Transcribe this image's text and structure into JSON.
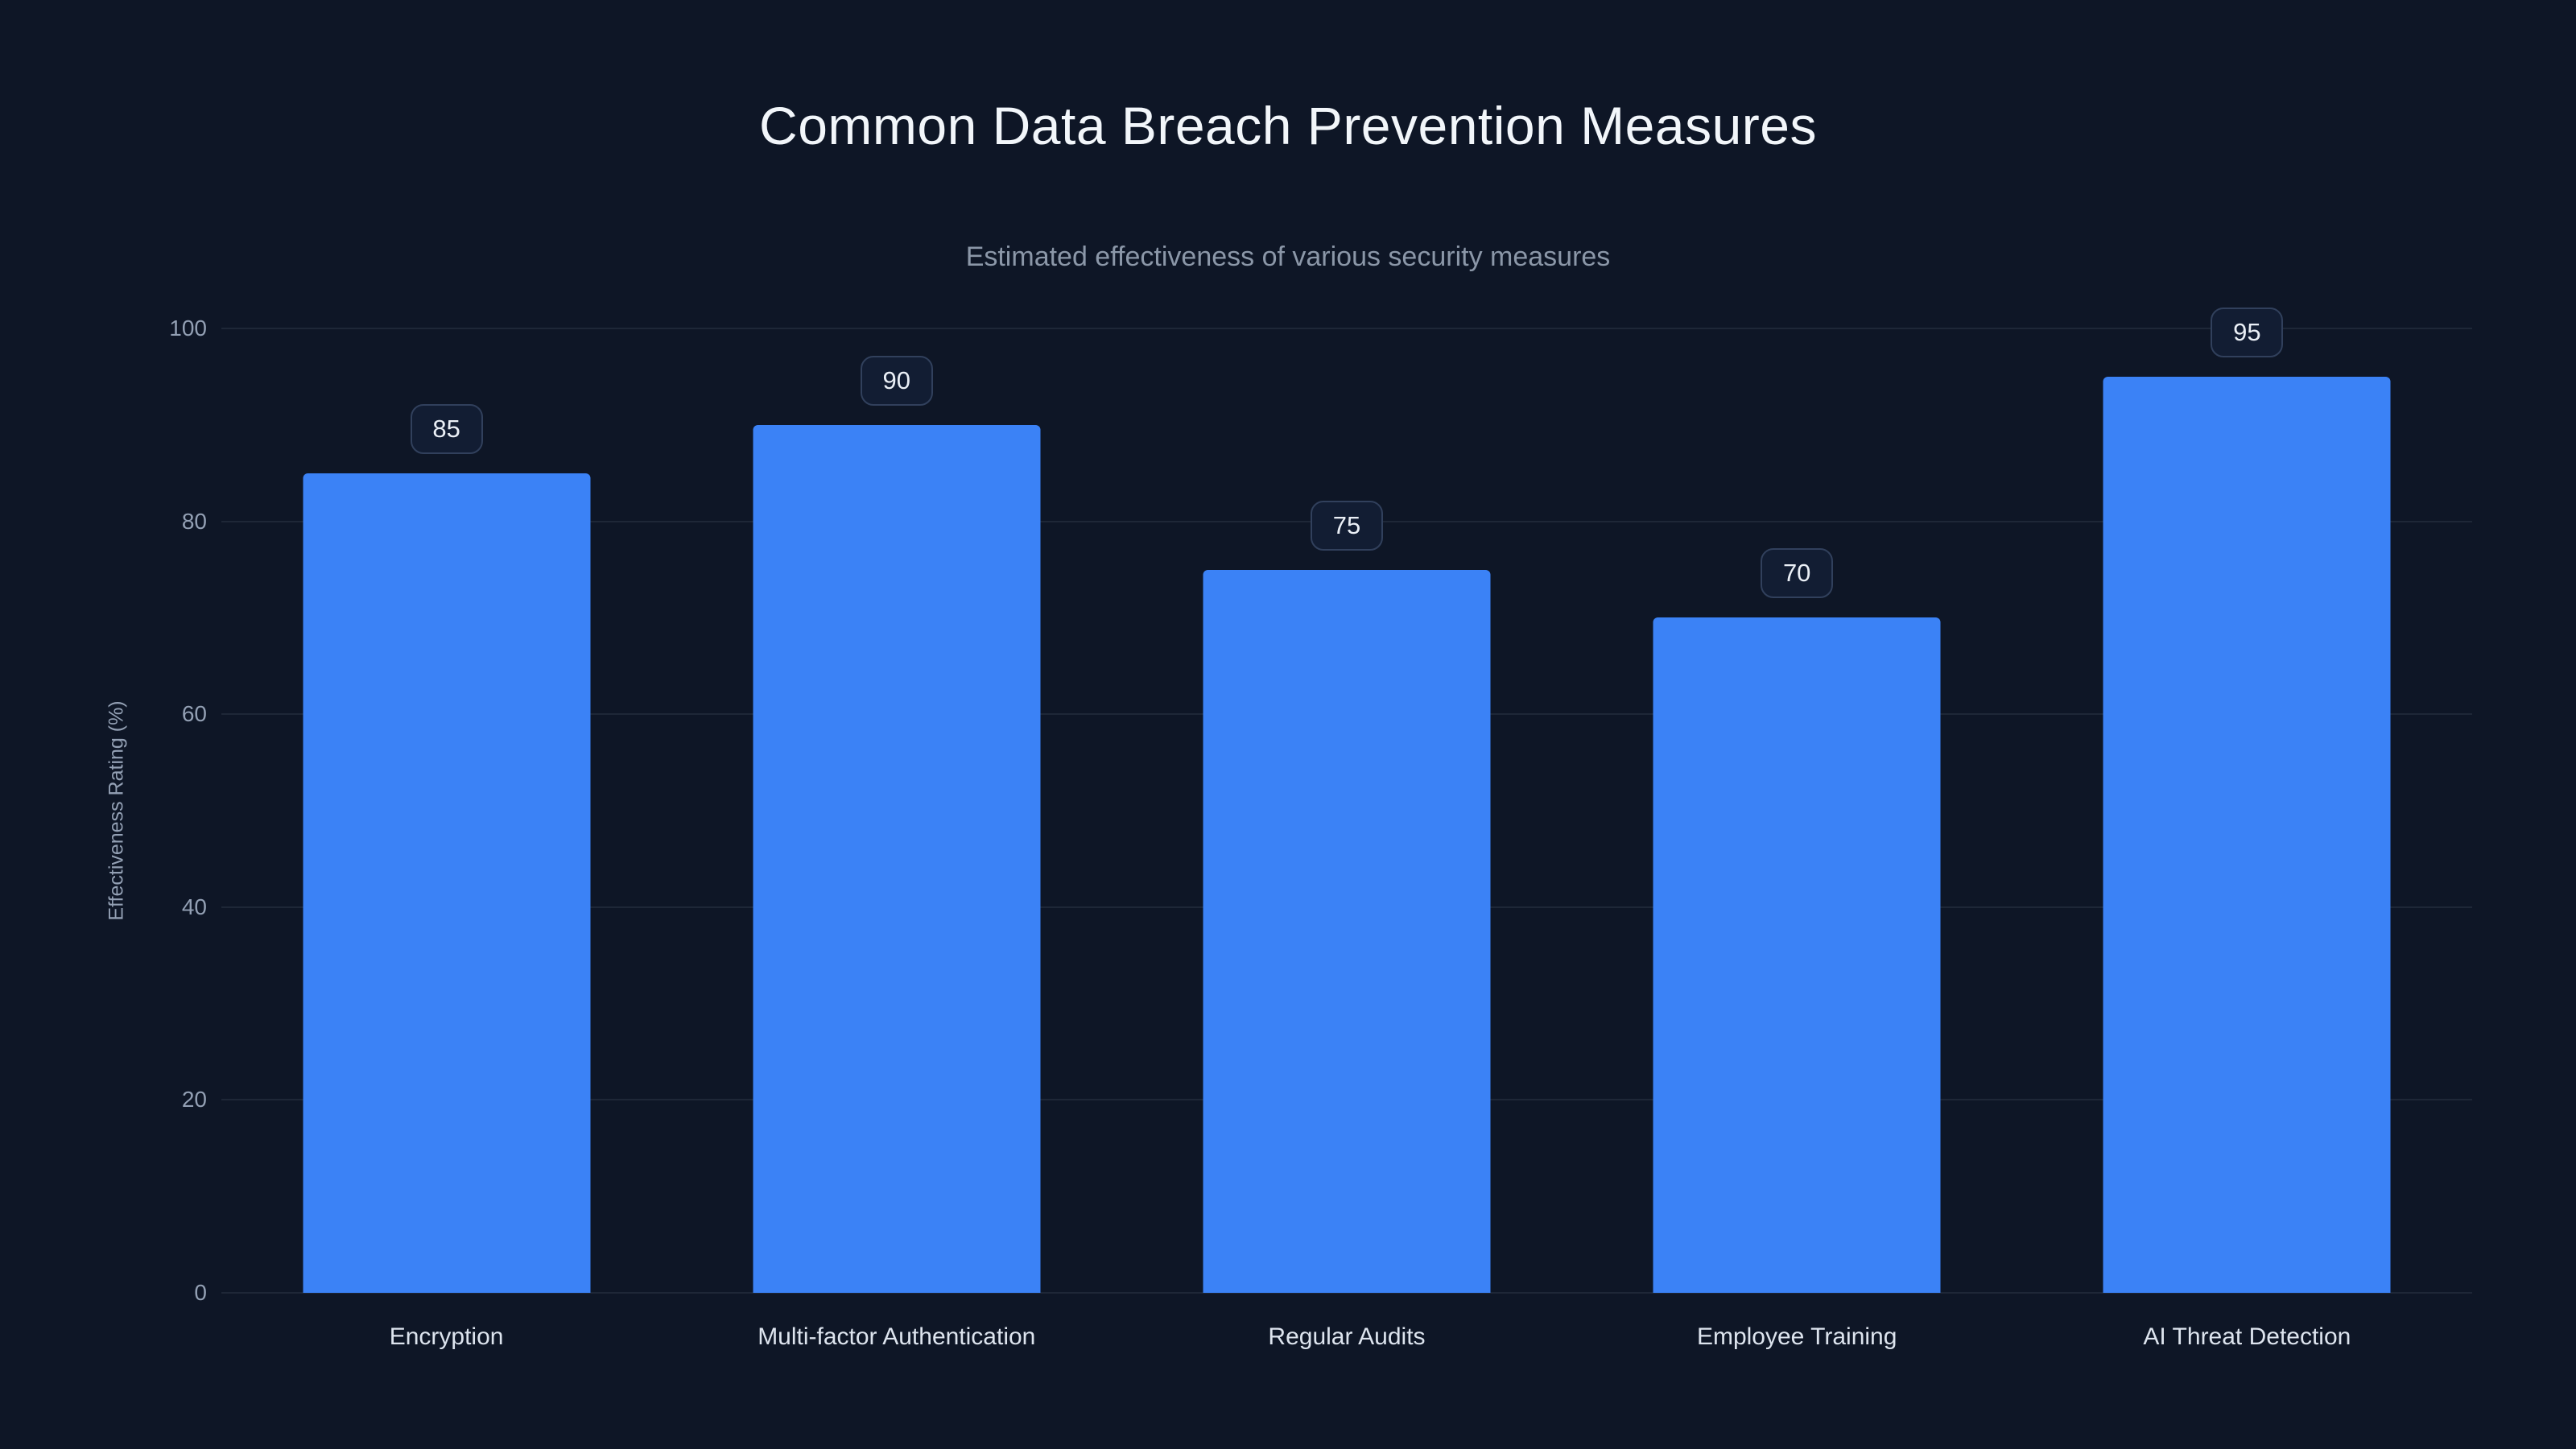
{
  "chart_data": {
    "type": "bar",
    "title": "Common Data Breach Prevention Measures",
    "subtitle": "Estimated effectiveness of various security measures",
    "categories": [
      "Encryption",
      "Multi-factor Authentication",
      "Regular Audits",
      "Employee Training",
      "AI Threat Detection"
    ],
    "values": [
      85,
      90,
      75,
      70,
      95
    ],
    "ylabel": "Effectiveness Rating (%)",
    "yticks": [
      0,
      20,
      40,
      60,
      80,
      100
    ],
    "ylim": [
      0,
      100
    ],
    "grid": true,
    "legend": false,
    "colors": {
      "background": "#0e1626",
      "bar": "#3b82f6",
      "grid": "#26334a",
      "title": "#f2f6fa",
      "subtitle": "#8b97a8",
      "tick": "#93a0b4",
      "category_label": "#dde4ee",
      "badge_background": "#121d33",
      "badge_border": "#31405c",
      "badge_text": "#eaeff6"
    }
  }
}
